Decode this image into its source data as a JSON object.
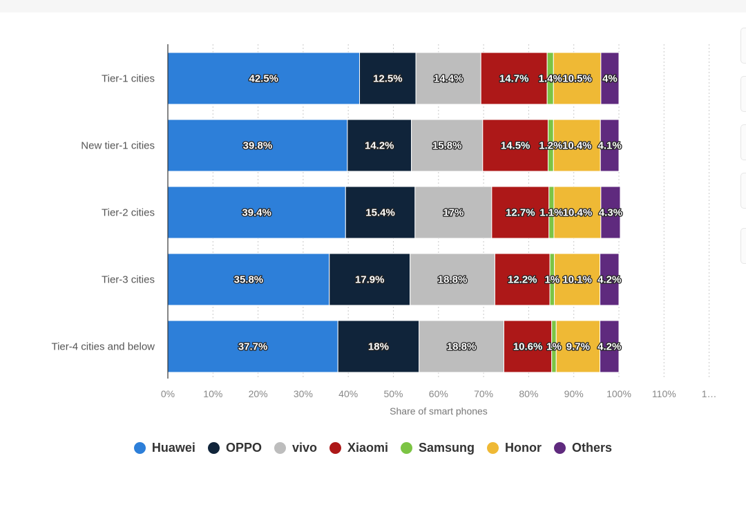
{
  "chart_data": {
    "type": "bar",
    "orientation": "horizontal",
    "stacked": true,
    "xlabel": "Share of smart phones",
    "ylabel": "",
    "xlim": [
      0,
      120
    ],
    "x_ticks": [
      "0%",
      "10%",
      "20%",
      "30%",
      "40%",
      "50%",
      "60%",
      "70%",
      "80%",
      "90%",
      "100%",
      "110%",
      "1…"
    ],
    "categories": [
      "Tier-1 cities",
      "New tier-1 cities",
      "Tier-2 cities",
      "Tier-3 cities",
      "Tier-4 cities and below"
    ],
    "legend_position": "bottom",
    "grid": true,
    "series": [
      {
        "name": "Huawei",
        "color": "#2d7fd9",
        "text_color": "#ffffff",
        "values": [
          42.5,
          39.8,
          39.4,
          35.8,
          37.7
        ],
        "labels": [
          "42.5%",
          "39.8%",
          "39.4%",
          "35.8%",
          "37.7%"
        ]
      },
      {
        "name": "OPPO",
        "color": "#10243a",
        "text_color": "#ffffff",
        "values": [
          12.5,
          14.2,
          15.4,
          17.9,
          18
        ],
        "labels": [
          "12.5%",
          "14.2%",
          "15.4%",
          "17.9%",
          "18%"
        ]
      },
      {
        "name": "vivo",
        "color": "#bdbdbd",
        "text_color": "#ffffff",
        "values": [
          14.4,
          15.8,
          17,
          18.8,
          18.8
        ],
        "labels": [
          "14.4%",
          "15.8%",
          "17%",
          "18.8%",
          "18.8%"
        ]
      },
      {
        "name": "Xiaomi",
        "color": "#ad1818",
        "text_color": "#ffffff",
        "values": [
          14.7,
          14.5,
          12.7,
          12.2,
          10.6
        ],
        "labels": [
          "14.7%",
          "14.5%",
          "12.7%",
          "12.2%",
          "10.6%"
        ]
      },
      {
        "name": "Samsung",
        "color": "#7cc444",
        "text_color": "#ffffff",
        "values": [
          1.4,
          1.2,
          1.1,
          1,
          1
        ],
        "labels": [
          "1.4%",
          "1.2%",
          "1.1%",
          "1%",
          "1%"
        ]
      },
      {
        "name": "Honor",
        "color": "#efb935",
        "text_color": "#ffffff",
        "values": [
          10.5,
          10.4,
          10.4,
          10.1,
          9.7
        ],
        "labels": [
          "10.5%",
          "10.4%",
          "10.4%",
          "10.1%",
          "9.7%"
        ]
      },
      {
        "name": "Others",
        "color": "#5f2a7e",
        "text_color": "#ffffff",
        "values": [
          4,
          4.1,
          4.3,
          4.2,
          4.2
        ],
        "labels": [
          "4%",
          "4.1%",
          "4.3%",
          "4.2%",
          "4.2%"
        ]
      }
    ]
  }
}
